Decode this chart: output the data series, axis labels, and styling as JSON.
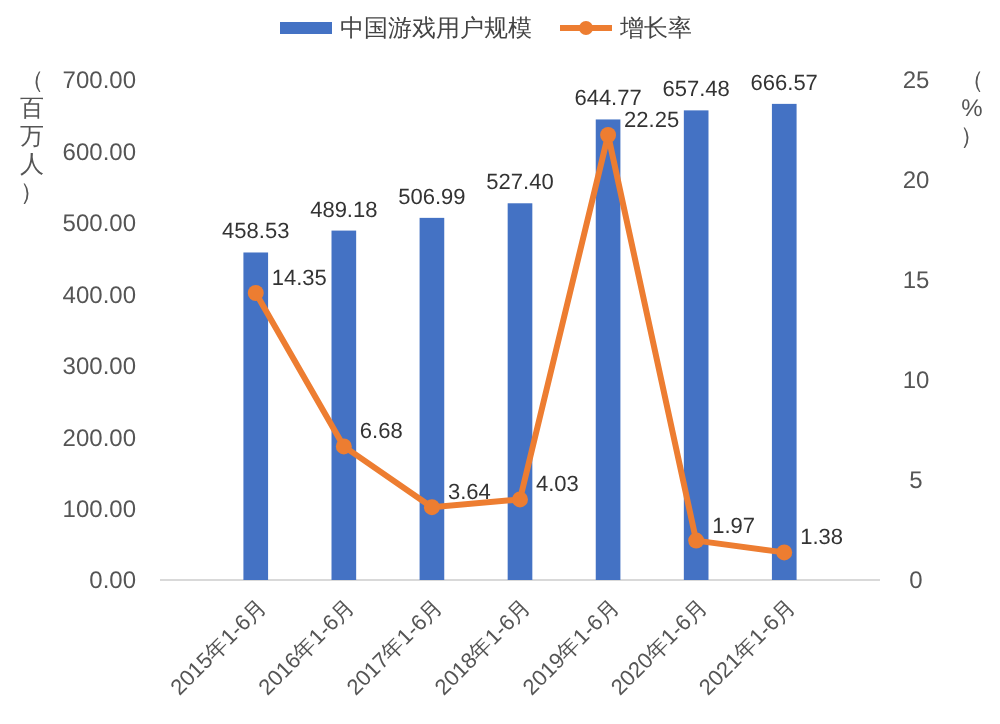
{
  "chart_data": {
    "type": "bar",
    "categories": [
      "2015年1-6月",
      "2016年1-6月",
      "2017年1-6月",
      "2018年1-6月",
      "2019年1-6月",
      "2020年1-6月",
      "2021年1-6月"
    ],
    "series": [
      {
        "name": "中国游戏用户规模",
        "color": "#4472c4",
        "values": [
          458.53,
          489.18,
          506.99,
          527.4,
          644.77,
          657.48,
          666.57
        ],
        "value_labels": [
          "458.53",
          "489.18",
          "506.99",
          "527.40",
          "644.77",
          "657.48",
          "666.57"
        ]
      },
      {
        "name": "增长率",
        "type": "line",
        "axis": "y2",
        "color": "#ed7d31",
        "values": [
          14.35,
          6.68,
          3.64,
          4.03,
          22.25,
          1.97,
          1.38
        ]
      }
    ],
    "ylabel": "（百万人）",
    "y2label": "（%）",
    "ylim": [
      0,
      700
    ],
    "yticks": [
      {
        "value": 0,
        "label": "0.00"
      },
      {
        "value": 100,
        "label": "100.00"
      },
      {
        "value": 200,
        "label": "200.00"
      },
      {
        "value": 300,
        "label": "300.00"
      },
      {
        "value": 400,
        "label": "400.00"
      },
      {
        "value": 500,
        "label": "500.00"
      },
      {
        "value": 600,
        "label": "600.00"
      },
      {
        "value": 700,
        "label": "700.00"
      }
    ],
    "y2lim": [
      0,
      25
    ],
    "y2ticks": [
      0,
      5,
      10,
      15,
      20,
      25
    ],
    "data_labels": true,
    "marker": "circle",
    "legend": "top"
  }
}
